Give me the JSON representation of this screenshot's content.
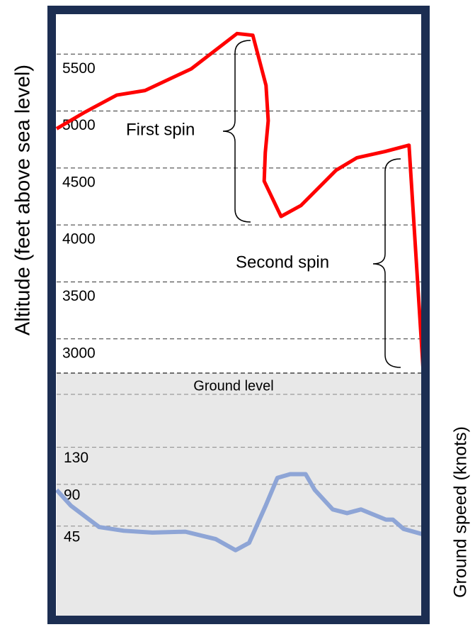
{
  "chart_data": [
    {
      "type": "line",
      "ylabel": "Altitude (feet above sea level)",
      "annotations": [
        "First spin",
        "Second spin"
      ],
      "x": [
        0,
        7.7,
        16.4,
        24.1,
        36.7,
        49.2,
        53.5,
        57.1,
        57.7,
        56.9,
        56.6,
        61.2,
        66.6,
        76.2,
        81.9,
        89.6,
        96.1,
        100
      ],
      "xlim": [
        0,
        100
      ],
      "ylim": [
        2700,
        5850
      ],
      "yticks": [
        3000,
        3500,
        4000,
        4500,
        5000,
        5500
      ],
      "grid": true,
      "series": [
        {
          "color": "#ff0000",
          "values": [
            4845,
            4990,
            5140,
            5180,
            5370,
            5680,
            5665,
            5225,
            4915,
            4635,
            4385,
            4075,
            4170,
            4480,
            4590,
            4645,
            4700,
            2700
          ]
        }
      ]
    },
    {
      "type": "line",
      "ylabel": "Ground speed (knots)",
      "annotations": [
        "Ground level"
      ],
      "x": [
        0,
        3.9,
        11.6,
        18.3,
        26.1,
        35.1,
        43.4,
        48.8,
        52.5,
        57.0,
        60.2,
        63.7,
        67.9,
        70.4,
        75.3,
        79.2,
        83.0,
        89.8,
        91.7,
        94.6,
        100
      ],
      "xlim": [
        0,
        100
      ],
      "ylim": [
        -50,
        210
      ],
      "yticks": [
        45,
        90,
        130
      ],
      "grid": true,
      "series": [
        {
          "color": "#8ea5d6",
          "values": [
            84,
            67,
            44,
            40,
            38,
            39,
            31,
            19,
            27,
            67,
            97,
            101,
            101,
            84,
            63,
            59,
            63,
            52,
            52,
            42,
            36
          ]
        }
      ]
    }
  ]
}
